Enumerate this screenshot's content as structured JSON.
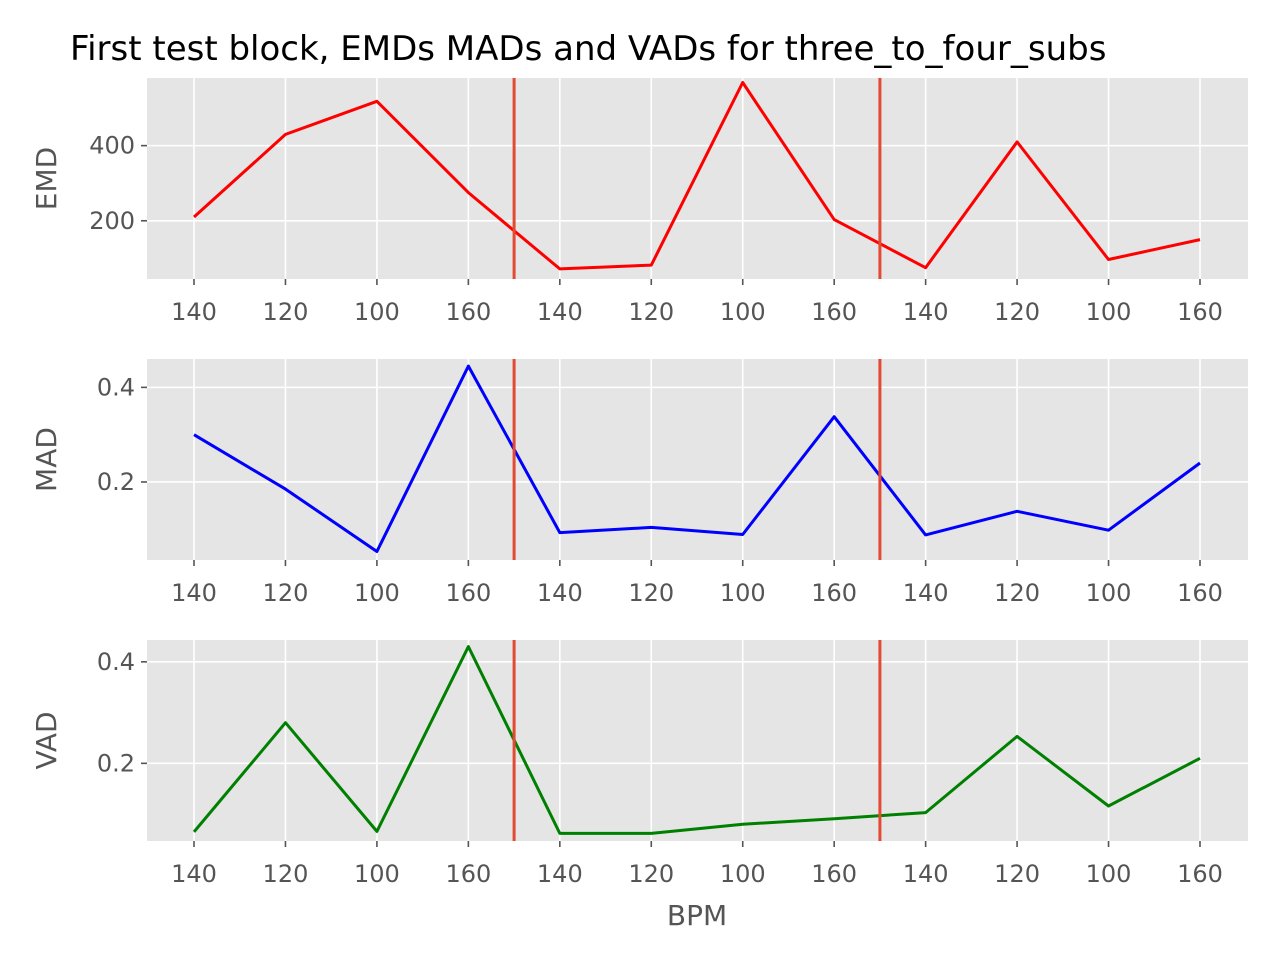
{
  "chart_data": {
    "type": "line",
    "title": "First test block, EMDs MADs and VADs for three_to_four_subs",
    "xlabel": "BPM",
    "x_tick_labels": [
      "140",
      "120",
      "100",
      "160",
      "140",
      "120",
      "100",
      "160",
      "140",
      "120",
      "100",
      "160"
    ],
    "block_boundaries": [
      3.5,
      7.5
    ],
    "grid": true,
    "colors": {
      "panel_bg": "#e5e5e5",
      "grid": "#ffffff",
      "boundary": "#e24a33"
    },
    "panels": [
      {
        "ylabel": "EMD",
        "color": "#ff0000",
        "ylim": [
          45,
          580
        ],
        "yticks": [
          200,
          400
        ],
        "ytick_labels": [
          "200",
          "400"
        ],
        "values": [
          210,
          430,
          518,
          275,
          72,
          82,
          568,
          203,
          75,
          410,
          97,
          150
        ]
      },
      {
        "ylabel": "MAD",
        "color": "#0000ff",
        "ylim": [
          0.035,
          0.46
        ],
        "yticks": [
          0.2,
          0.4
        ],
        "ytick_labels": [
          "0.2",
          "0.4"
        ],
        "values": [
          0.3,
          0.185,
          0.053,
          0.445,
          0.093,
          0.104,
          0.089,
          0.338,
          0.088,
          0.138,
          0.098,
          0.24
        ]
      },
      {
        "ylabel": "VAD",
        "color": "#008000",
        "ylim": [
          0.047,
          0.443
        ],
        "yticks": [
          0.2,
          0.4
        ],
        "ytick_labels": [
          "0.2",
          "0.4"
        ],
        "values": [
          0.065,
          0.28,
          0.066,
          0.43,
          0.062,
          0.062,
          0.08,
          0.091,
          0.103,
          0.253,
          0.116,
          0.21
        ]
      }
    ]
  }
}
